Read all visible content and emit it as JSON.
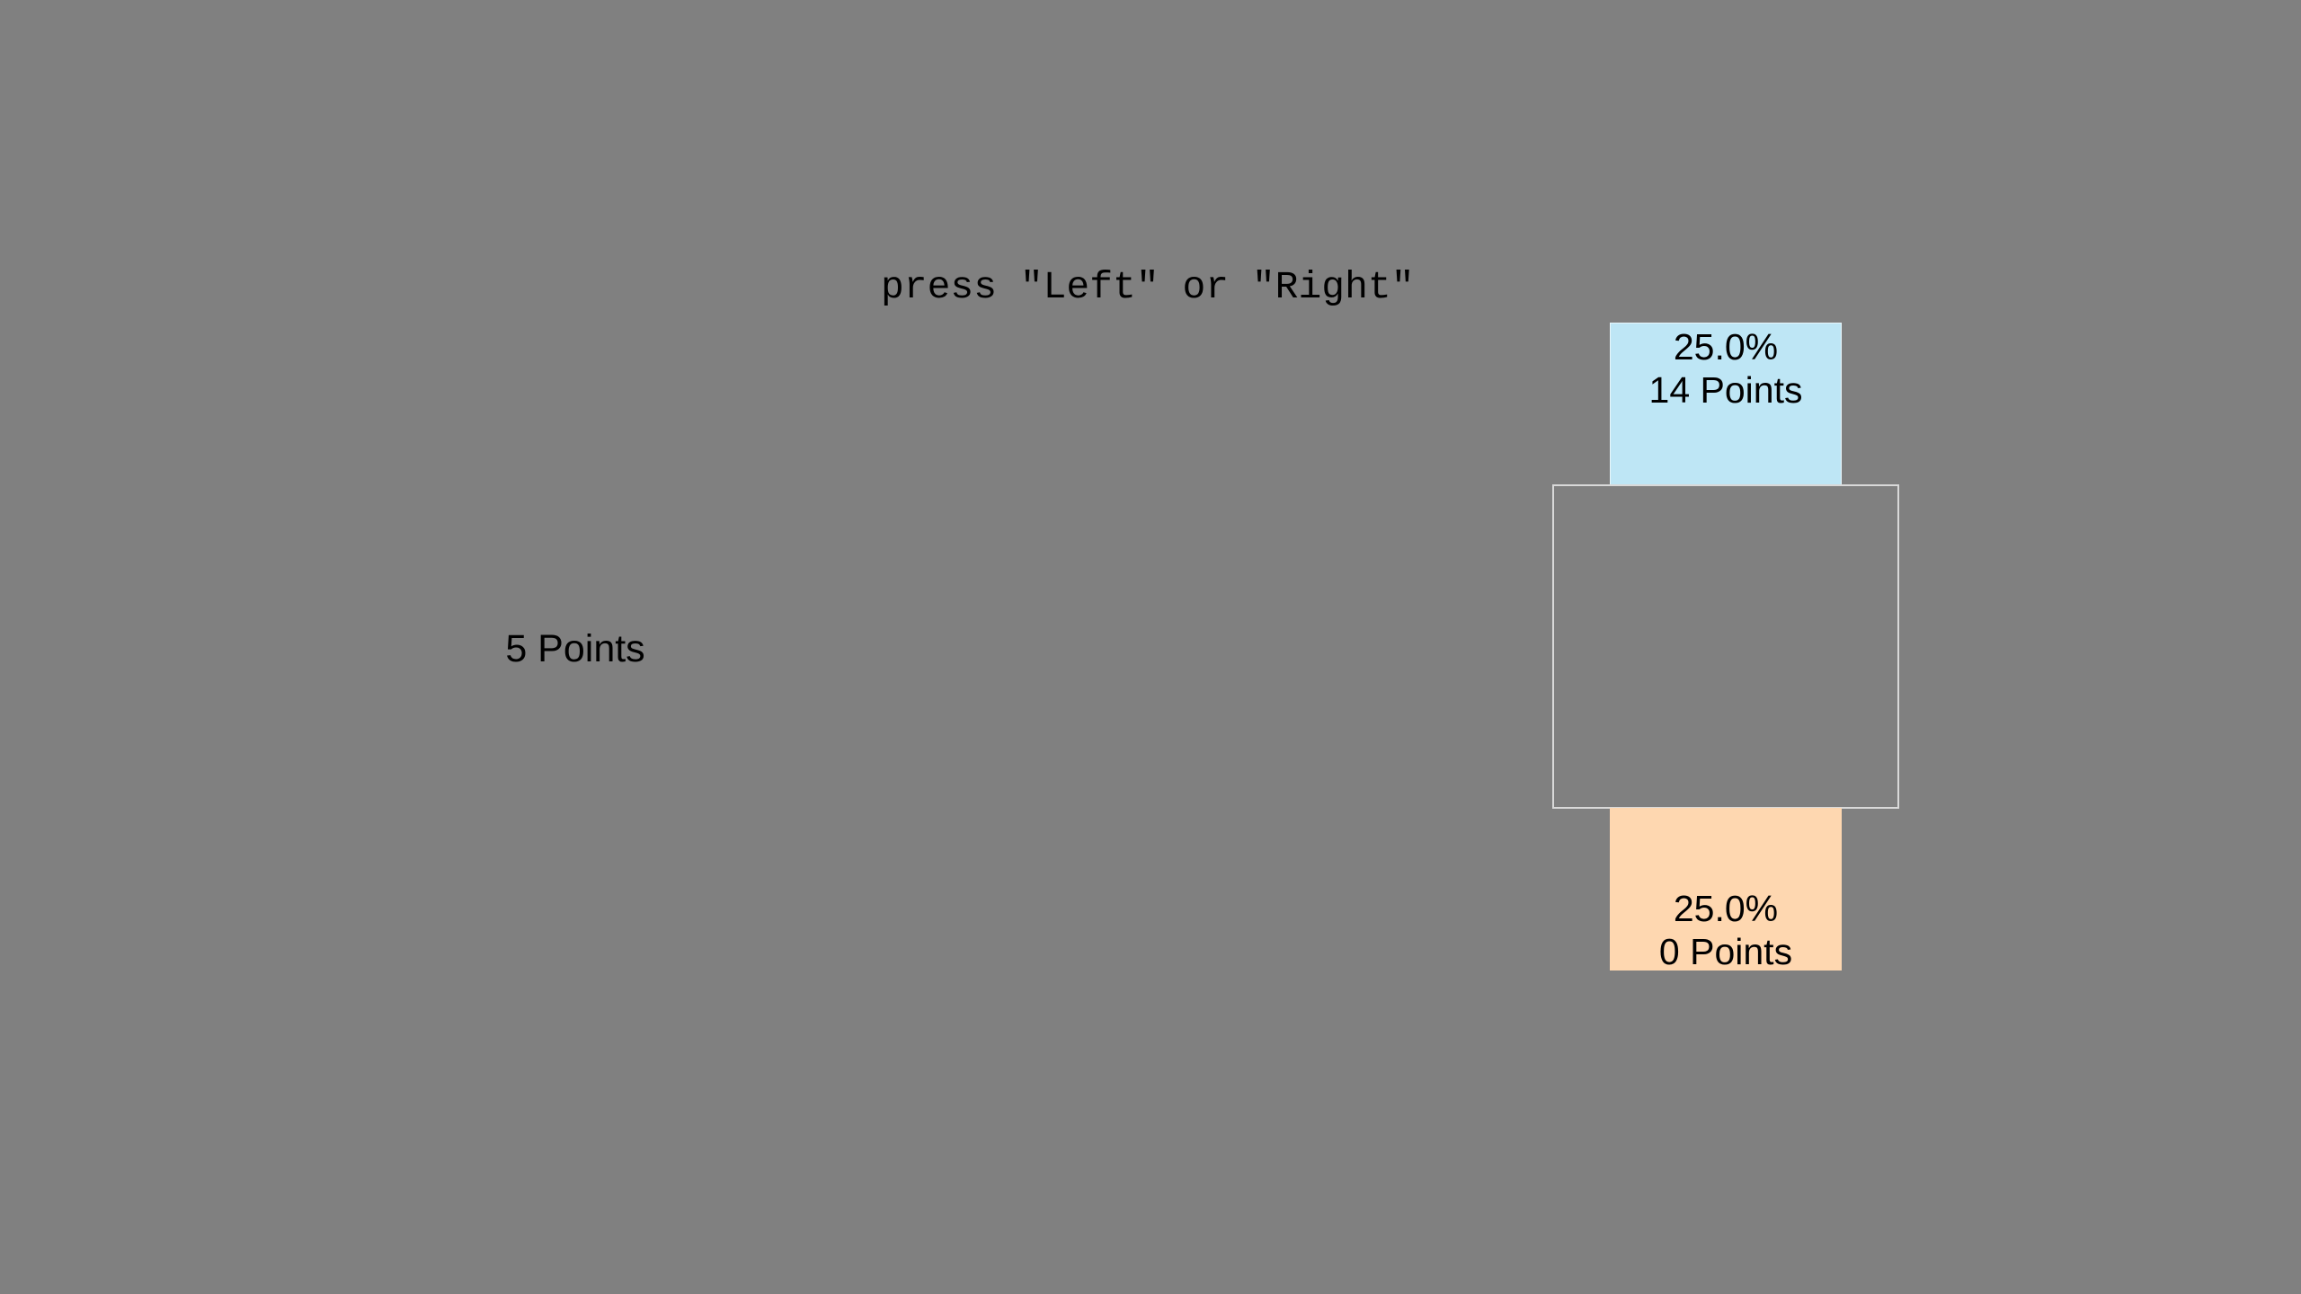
{
  "instruction": "press \"Left\" or \"Right\"",
  "sure_option": {
    "label": "5 Points"
  },
  "gamble": {
    "top": {
      "probability": "25.0%",
      "points": "14 Points",
      "color": "#bee6f5"
    },
    "bottom": {
      "probability": "25.0%",
      "points": "0 Points",
      "color": "#fed7b0"
    }
  },
  "colors": {
    "background": "#808080",
    "frame": "#d9d9d9"
  }
}
